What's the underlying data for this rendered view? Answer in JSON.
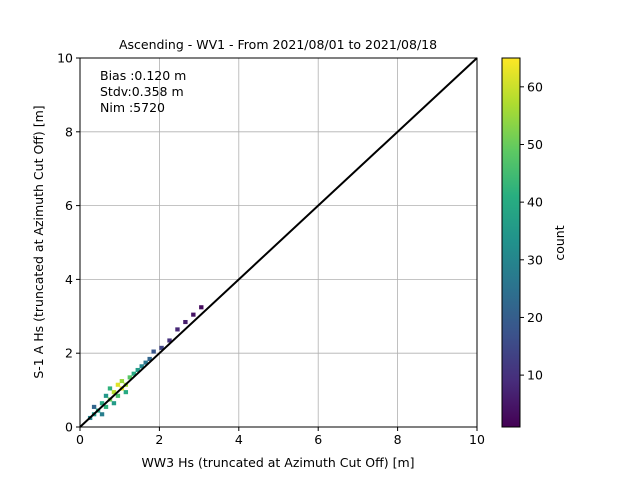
{
  "chart_data": {
    "type": "heatmap",
    "title": "Ascending - WV1 - From 2021/08/01 to 2021/08/18",
    "xlabel": "WW3 Hs (truncated at Azimuth Cut Off) [m]",
    "ylabel": "S-1 A Hs (truncated at Azimuth Cut Off) [m]",
    "xlim": [
      0,
      10
    ],
    "ylim": [
      0,
      10
    ],
    "xticks": [
      "0",
      "2",
      "4",
      "6",
      "8",
      "10"
    ],
    "yticks": [
      "0",
      "2",
      "4",
      "6",
      "8",
      "10"
    ],
    "grid": true,
    "stats": [
      "Bias :0.120 m",
      "Stdv:0.358 m",
      "Nim :5720"
    ],
    "reference_line": {
      "x": [
        0,
        10
      ],
      "y": [
        0,
        10
      ],
      "color": "#000000"
    },
    "colorbar": {
      "label": "count",
      "min": 1,
      "max": 65,
      "ticks": [
        "10",
        "20",
        "30",
        "40",
        "50",
        "60"
      ],
      "colormap": "viridis"
    },
    "bin_width": 0.1,
    "bins": [
      {
        "x": 0.2,
        "y": 0.2,
        "count": 30
      },
      {
        "x": 0.3,
        "y": 0.3,
        "count": 35
      },
      {
        "x": 0.3,
        "y": 0.5,
        "count": 22
      },
      {
        "x": 0.4,
        "y": 0.4,
        "count": 38
      },
      {
        "x": 0.5,
        "y": 0.3,
        "count": 28
      },
      {
        "x": 0.5,
        "y": 0.6,
        "count": 40
      },
      {
        "x": 0.6,
        "y": 0.5,
        "count": 42
      },
      {
        "x": 0.6,
        "y": 0.8,
        "count": 35
      },
      {
        "x": 0.7,
        "y": 0.7,
        "count": 50
      },
      {
        "x": 0.7,
        "y": 1.0,
        "count": 42
      },
      {
        "x": 0.8,
        "y": 0.9,
        "count": 58
      },
      {
        "x": 0.8,
        "y": 0.6,
        "count": 36
      },
      {
        "x": 0.9,
        "y": 1.1,
        "count": 62
      },
      {
        "x": 0.9,
        "y": 0.8,
        "count": 46
      },
      {
        "x": 1.0,
        "y": 1.0,
        "count": 63
      },
      {
        "x": 1.0,
        "y": 1.2,
        "count": 55
      },
      {
        "x": 1.1,
        "y": 1.1,
        "count": 56
      },
      {
        "x": 1.1,
        "y": 0.9,
        "count": 40
      },
      {
        "x": 1.2,
        "y": 1.3,
        "count": 48
      },
      {
        "x": 1.3,
        "y": 1.4,
        "count": 40
      },
      {
        "x": 1.4,
        "y": 1.5,
        "count": 36
      },
      {
        "x": 1.5,
        "y": 1.6,
        "count": 30
      },
      {
        "x": 1.6,
        "y": 1.7,
        "count": 26
      },
      {
        "x": 1.7,
        "y": 1.8,
        "count": 22
      },
      {
        "x": 1.8,
        "y": 2.0,
        "count": 18
      },
      {
        "x": 2.0,
        "y": 2.1,
        "count": 14
      },
      {
        "x": 2.2,
        "y": 2.3,
        "count": 10
      },
      {
        "x": 2.4,
        "y": 2.6,
        "count": 8
      },
      {
        "x": 2.6,
        "y": 2.8,
        "count": 6
      },
      {
        "x": 2.8,
        "y": 3.0,
        "count": 4
      },
      {
        "x": 3.0,
        "y": 3.2,
        "count": 3
      }
    ]
  }
}
